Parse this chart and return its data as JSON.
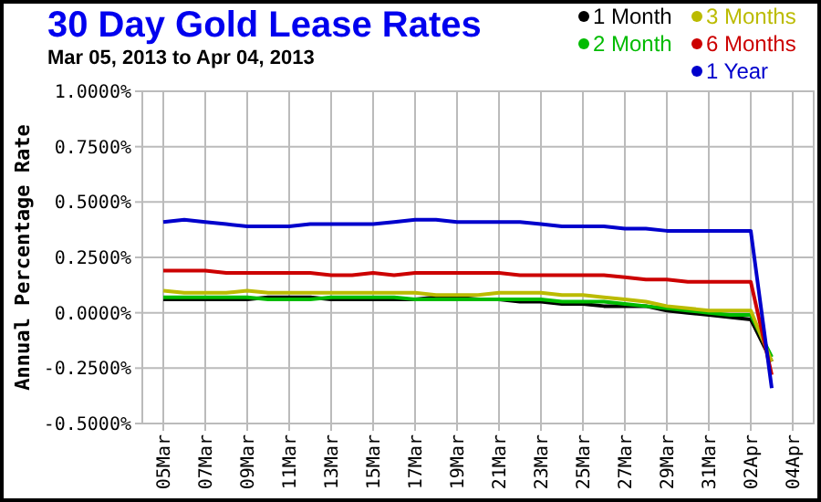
{
  "chart_data": {
    "type": "line",
    "title": "30 Day Gold Lease Rates",
    "subtitle": "Mar 05, 2013 to Apr 04, 2013",
    "ylabel": "Annual Percentage Rate",
    "x": [
      "2013-03-05",
      "2013-03-06",
      "2013-03-07",
      "2013-03-08",
      "2013-03-09",
      "2013-03-10",
      "2013-03-11",
      "2013-03-12",
      "2013-03-13",
      "2013-03-14",
      "2013-03-15",
      "2013-03-16",
      "2013-03-17",
      "2013-03-18",
      "2013-03-19",
      "2013-03-20",
      "2013-03-21",
      "2013-03-22",
      "2013-03-23",
      "2013-03-24",
      "2013-03-25",
      "2013-03-26",
      "2013-03-27",
      "2013-03-28",
      "2013-03-29",
      "2013-03-30",
      "2013-03-31",
      "2013-04-01",
      "2013-04-02",
      "2013-04-03"
    ],
    "series": [
      {
        "name": "1 Month",
        "color": "#000000",
        "values": [
          0.06,
          0.06,
          0.06,
          0.06,
          0.06,
          0.07,
          0.07,
          0.07,
          0.06,
          0.06,
          0.06,
          0.06,
          0.06,
          0.07,
          0.07,
          0.06,
          0.06,
          0.05,
          0.05,
          0.04,
          0.04,
          0.03,
          0.03,
          0.03,
          0.01,
          0.0,
          -0.01,
          -0.02,
          -0.03,
          -0.22
        ]
      },
      {
        "name": "2 Month",
        "color": "#00bb00",
        "values": [
          0.07,
          0.07,
          0.07,
          0.07,
          0.07,
          0.06,
          0.06,
          0.06,
          0.07,
          0.07,
          0.07,
          0.07,
          0.06,
          0.06,
          0.06,
          0.06,
          0.06,
          0.06,
          0.06,
          0.05,
          0.05,
          0.05,
          0.04,
          0.03,
          0.02,
          0.01,
          0.0,
          -0.01,
          -0.01,
          -0.2
        ]
      },
      {
        "name": "3 Months",
        "color": "#bbbb00",
        "values": [
          0.1,
          0.09,
          0.09,
          0.09,
          0.1,
          0.09,
          0.09,
          0.09,
          0.09,
          0.09,
          0.09,
          0.09,
          0.09,
          0.08,
          0.08,
          0.08,
          0.09,
          0.09,
          0.09,
          0.08,
          0.08,
          0.07,
          0.06,
          0.05,
          0.03,
          0.02,
          0.01,
          0.01,
          0.01,
          -0.22
        ]
      },
      {
        "name": "6 Months",
        "color": "#cc0000",
        "values": [
          0.19,
          0.19,
          0.19,
          0.18,
          0.18,
          0.18,
          0.18,
          0.18,
          0.17,
          0.17,
          0.18,
          0.17,
          0.18,
          0.18,
          0.18,
          0.18,
          0.18,
          0.17,
          0.17,
          0.17,
          0.17,
          0.17,
          0.16,
          0.15,
          0.15,
          0.14,
          0.14,
          0.14,
          0.14,
          -0.28
        ]
      },
      {
        "name": "1 Year",
        "color": "#0000cc",
        "values": [
          0.41,
          0.42,
          0.41,
          0.4,
          0.39,
          0.39,
          0.39,
          0.4,
          0.4,
          0.4,
          0.4,
          0.41,
          0.42,
          0.42,
          0.41,
          0.41,
          0.41,
          0.41,
          0.4,
          0.39,
          0.39,
          0.39,
          0.38,
          0.38,
          0.37,
          0.37,
          0.37,
          0.37,
          0.37,
          -0.34
        ]
      }
    ],
    "xlim": [
      "2013-03-04",
      "2013-04-05"
    ],
    "xticks": [
      {
        "value": "2013-03-05",
        "label": "05Mar"
      },
      {
        "value": "2013-03-07",
        "label": "07Mar"
      },
      {
        "value": "2013-03-09",
        "label": "09Mar"
      },
      {
        "value": "2013-03-11",
        "label": "11Mar"
      },
      {
        "value": "2013-03-13",
        "label": "13Mar"
      },
      {
        "value": "2013-03-15",
        "label": "15Mar"
      },
      {
        "value": "2013-03-17",
        "label": "17Mar"
      },
      {
        "value": "2013-03-19",
        "label": "19Mar"
      },
      {
        "value": "2013-03-21",
        "label": "21Mar"
      },
      {
        "value": "2013-03-23",
        "label": "23Mar"
      },
      {
        "value": "2013-03-25",
        "label": "25Mar"
      },
      {
        "value": "2013-03-27",
        "label": "27Mar"
      },
      {
        "value": "2013-03-29",
        "label": "29Mar"
      },
      {
        "value": "2013-03-31",
        "label": "31Mar"
      },
      {
        "value": "2013-04-02",
        "label": "02Apr"
      },
      {
        "value": "2013-04-04",
        "label": "04Apr"
      }
    ],
    "ylim": [
      -0.5,
      1.0
    ],
    "yticks": [
      {
        "value": -0.5,
        "label": "-0.5000%"
      },
      {
        "value": -0.25,
        "label": "-0.2500%"
      },
      {
        "value": 0,
        "label": "0.0000%"
      },
      {
        "value": 0.25,
        "label": "0.2500%"
      },
      {
        "value": 0.5,
        "label": "0.5000%"
      },
      {
        "value": 0.75,
        "label": "0.7500%"
      },
      {
        "value": 1.0,
        "label": "1.0000%"
      }
    ],
    "grid": true,
    "legend": "top right",
    "marker": "none",
    "line_style": "solid"
  }
}
